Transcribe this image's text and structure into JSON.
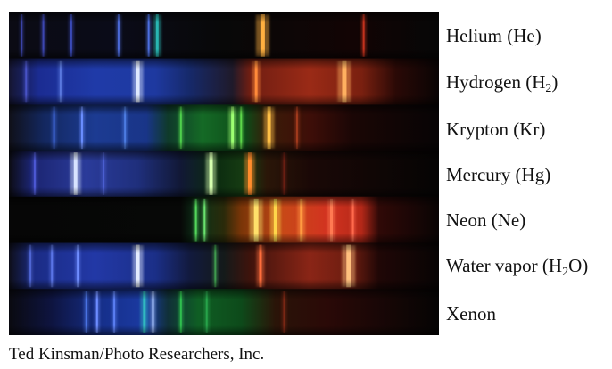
{
  "figure": {
    "spectra": [
      {
        "label": "Helium (He)",
        "base_gradient": [
          {
            "offset": 0.0,
            "color": "#0b0b14"
          },
          {
            "offset": 0.25,
            "color": "#0a0b18"
          },
          {
            "offset": 0.5,
            "color": "#080808"
          },
          {
            "offset": 0.8,
            "color": "#120404"
          },
          {
            "offset": 1.0,
            "color": "#060606"
          }
        ],
        "lines": [
          {
            "at": 0.03,
            "color": "#3a43a6",
            "width": 1.5
          },
          {
            "at": 0.08,
            "color": "#3c46b0",
            "width": 2
          },
          {
            "at": 0.145,
            "color": "#3a4ab8",
            "width": 2
          },
          {
            "at": 0.255,
            "color": "#4b69d7",
            "width": 2
          },
          {
            "at": 0.325,
            "color": "#4c6fe0",
            "width": 2
          },
          {
            "at": 0.345,
            "color": "#29b6b2",
            "width": 3
          },
          {
            "at": 0.59,
            "color": "#ffb040",
            "width": 5
          },
          {
            "at": 0.825,
            "color": "#c3321d",
            "width": 2
          }
        ]
      },
      {
        "label_main": "Hydrogen (H",
        "label_sub": "2",
        "label_end": ")",
        "base_gradient": [
          {
            "offset": 0.0,
            "color": "#151530"
          },
          {
            "offset": 0.07,
            "color": "#1b2c92"
          },
          {
            "offset": 0.2,
            "color": "#1f3aa8"
          },
          {
            "offset": 0.34,
            "color": "#1e39a0"
          },
          {
            "offset": 0.42,
            "color": "#16296a"
          },
          {
            "offset": 0.52,
            "color": "#1f1a2a"
          },
          {
            "offset": 0.56,
            "color": "#701e12"
          },
          {
            "offset": 0.7,
            "color": "#9a2a16"
          },
          {
            "offset": 0.82,
            "color": "#7a2010"
          },
          {
            "offset": 0.9,
            "color": "#2a0906"
          },
          {
            "offset": 1.0,
            "color": "#090404"
          }
        ],
        "lines": [
          {
            "at": 0.04,
            "color": "#4852c5",
            "width": 2
          },
          {
            "at": 0.12,
            "color": "#5a78df",
            "width": 2
          },
          {
            "at": 0.3,
            "color": "#dfe9ff",
            "width": 4
          },
          {
            "at": 0.575,
            "color": "#ff8a3a",
            "width": 3
          },
          {
            "at": 0.78,
            "color": "#ffb060",
            "width": 5
          }
        ]
      },
      {
        "label": "Krypton (Kr)",
        "base_gradient": [
          {
            "offset": 0.0,
            "color": "#101018"
          },
          {
            "offset": 0.08,
            "color": "#13275e"
          },
          {
            "offset": 0.2,
            "color": "#1c3b92"
          },
          {
            "offset": 0.32,
            "color": "#193588"
          },
          {
            "offset": 0.37,
            "color": "#0f3a2a"
          },
          {
            "offset": 0.45,
            "color": "#156a26"
          },
          {
            "offset": 0.55,
            "color": "#0d4a18"
          },
          {
            "offset": 0.6,
            "color": "#3a1c08"
          },
          {
            "offset": 0.7,
            "color": "#3e0e08"
          },
          {
            "offset": 0.8,
            "color": "#1a0605"
          },
          {
            "offset": 1.0,
            "color": "#070405"
          }
        ],
        "lines": [
          {
            "at": 0.105,
            "color": "#3c63cf",
            "width": 2
          },
          {
            "at": 0.17,
            "color": "#6a8eff",
            "width": 2
          },
          {
            "at": 0.27,
            "color": "#4c7ce2",
            "width": 2
          },
          {
            "at": 0.4,
            "color": "#4fd14d",
            "width": 2
          },
          {
            "at": 0.52,
            "color": "#9dff72",
            "width": 3
          },
          {
            "at": 0.54,
            "color": "#5dd74a",
            "width": 2
          },
          {
            "at": 0.605,
            "color": "#ffc046",
            "width": 4
          },
          {
            "at": 0.67,
            "color": "#a23a1c",
            "width": 2
          }
        ]
      },
      {
        "label": "Mercury (Hg)",
        "base_gradient": [
          {
            "offset": 0.0,
            "color": "#0c0c12"
          },
          {
            "offset": 0.05,
            "color": "#1b2470"
          },
          {
            "offset": 0.18,
            "color": "#2a3b9a"
          },
          {
            "offset": 0.3,
            "color": "#1f2f7c"
          },
          {
            "offset": 0.4,
            "color": "#111835"
          },
          {
            "offset": 0.48,
            "color": "#0b2b10"
          },
          {
            "offset": 0.55,
            "color": "#173d12"
          },
          {
            "offset": 0.6,
            "color": "#2a1608"
          },
          {
            "offset": 0.7,
            "color": "#1a0806"
          },
          {
            "offset": 1.0,
            "color": "#050404"
          }
        ],
        "lines": [
          {
            "at": 0.06,
            "color": "#4c58d4",
            "width": 2
          },
          {
            "at": 0.155,
            "color": "#d8e4ff",
            "width": 4
          },
          {
            "at": 0.22,
            "color": "#4b5ed0",
            "width": 2
          },
          {
            "at": 0.47,
            "color": "#d6ffb0",
            "width": 4
          },
          {
            "at": 0.56,
            "color": "#ff8d2c",
            "width": 4
          },
          {
            "at": 0.64,
            "color": "#6a1e12",
            "width": 2
          }
        ]
      },
      {
        "label": "Neon (Ne)",
        "base_gradient": [
          {
            "offset": 0.0,
            "color": "#060606"
          },
          {
            "offset": 0.4,
            "color": "#070807"
          },
          {
            "offset": 0.44,
            "color": "#0d3318"
          },
          {
            "offset": 0.5,
            "color": "#2a2a0a"
          },
          {
            "offset": 0.54,
            "color": "#7a3508"
          },
          {
            "offset": 0.64,
            "color": "#c84818"
          },
          {
            "offset": 0.74,
            "color": "#d23320"
          },
          {
            "offset": 0.82,
            "color": "#b42818"
          },
          {
            "offset": 0.86,
            "color": "#300907"
          },
          {
            "offset": 1.0,
            "color": "#090404"
          }
        ],
        "lines": [
          {
            "at": 0.435,
            "color": "#53d65b",
            "width": 2
          },
          {
            "at": 0.455,
            "color": "#6ae26e",
            "width": 2
          },
          {
            "at": 0.575,
            "color": "#ffe06a",
            "width": 5
          },
          {
            "at": 0.62,
            "color": "#ffd64a",
            "width": 4
          },
          {
            "at": 0.68,
            "color": "#ff9b42",
            "width": 3
          },
          {
            "at": 0.75,
            "color": "#ff7a52",
            "width": 3
          },
          {
            "at": 0.8,
            "color": "#ff6a4d",
            "width": 2
          }
        ]
      },
      {
        "label_main": "Water vapor (H",
        "label_sub": "2",
        "label_end": "O)",
        "base_gradient": [
          {
            "offset": 0.0,
            "color": "#0e0e18"
          },
          {
            "offset": 0.06,
            "color": "#1b2c86"
          },
          {
            "offset": 0.2,
            "color": "#2238a6"
          },
          {
            "offset": 0.34,
            "color": "#1b2f88"
          },
          {
            "offset": 0.42,
            "color": "#121a3e"
          },
          {
            "offset": 0.5,
            "color": "#141a1a"
          },
          {
            "offset": 0.56,
            "color": "#3e130c"
          },
          {
            "offset": 0.7,
            "color": "#8a2516"
          },
          {
            "offset": 0.8,
            "color": "#6a1c10"
          },
          {
            "offset": 0.86,
            "color": "#200706"
          },
          {
            "offset": 1.0,
            "color": "#070404"
          }
        ],
        "lines": [
          {
            "at": 0.05,
            "color": "#4f66d4",
            "width": 2
          },
          {
            "at": 0.1,
            "color": "#5a74e6",
            "width": 2
          },
          {
            "at": 0.16,
            "color": "#6f8dff",
            "width": 2
          },
          {
            "at": 0.3,
            "color": "#e4ecff",
            "width": 4
          },
          {
            "at": 0.48,
            "color": "#3f9a4e",
            "width": 2
          },
          {
            "at": 0.585,
            "color": "#ff6e3c",
            "width": 3
          },
          {
            "at": 0.79,
            "color": "#ffc07e",
            "width": 5
          }
        ]
      },
      {
        "label": "Xenon",
        "base_gradient": [
          {
            "offset": 0.0,
            "color": "#0a0a10"
          },
          {
            "offset": 0.1,
            "color": "#0e1440"
          },
          {
            "offset": 0.22,
            "color": "#16308c"
          },
          {
            "offset": 0.32,
            "color": "#1b3aa2"
          },
          {
            "offset": 0.37,
            "color": "#103038"
          },
          {
            "offset": 0.44,
            "color": "#0f5e24"
          },
          {
            "offset": 0.54,
            "color": "#0d4a1a"
          },
          {
            "offset": 0.62,
            "color": "#2a1408"
          },
          {
            "offset": 0.74,
            "color": "#2a0907"
          },
          {
            "offset": 1.0,
            "color": "#050404"
          }
        ],
        "lines": [
          {
            "at": 0.18,
            "color": "#4a72e2",
            "width": 2
          },
          {
            "at": 0.205,
            "color": "#6d8cff",
            "width": 2
          },
          {
            "at": 0.245,
            "color": "#5a7ef2",
            "width": 2
          },
          {
            "at": 0.315,
            "color": "#31b9c0",
            "width": 3
          },
          {
            "at": 0.335,
            "color": "#a9c5ff",
            "width": 2
          },
          {
            "at": 0.4,
            "color": "#2fbf4f",
            "width": 2
          },
          {
            "at": 0.46,
            "color": "#27a34a",
            "width": 2
          },
          {
            "at": 0.64,
            "color": "#7a2714",
            "width": 2
          }
        ]
      }
    ]
  },
  "credit": "Ted Kinsman/Photo Researchers, Inc."
}
